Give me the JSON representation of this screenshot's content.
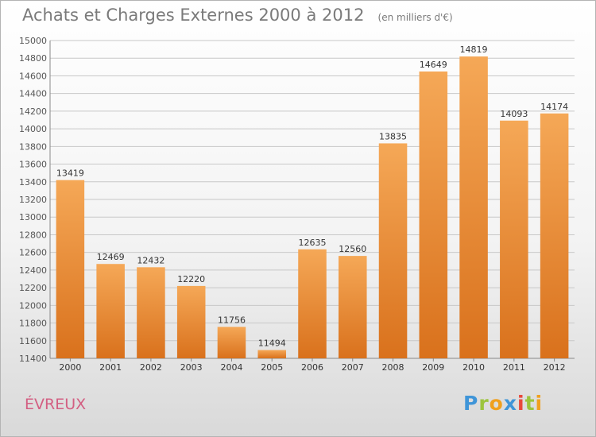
{
  "header": {
    "title": "Achats et Charges Externes 2000 à 2012",
    "unit": "(en milliers d'€)"
  },
  "footer": {
    "city": "ÉVREUX",
    "logo": [
      "P",
      "r",
      "o",
      "x",
      "i",
      "t",
      "i"
    ]
  },
  "colors": {
    "bar_top": "#f5a857",
    "bar_bottom": "#d9711c",
    "grid": "#c8c8c8",
    "text": "#555555"
  },
  "chart_data": {
    "type": "bar",
    "categories": [
      "2000",
      "2001",
      "2002",
      "2003",
      "2004",
      "2005",
      "2006",
      "2007",
      "2008",
      "2009",
      "2010",
      "2011",
      "2012"
    ],
    "values": [
      13419,
      12469,
      12432,
      12220,
      11756,
      11494,
      12635,
      12560,
      13835,
      14649,
      14819,
      14093,
      14174
    ],
    "title": "Achats et Charges Externes 2000 à 2012",
    "ylim": [
      11400,
      15000
    ],
    "yticks": [
      11400,
      11600,
      11800,
      12000,
      12200,
      12400,
      12600,
      12800,
      13000,
      13200,
      13400,
      13600,
      13800,
      14000,
      14200,
      14400,
      14600,
      14800,
      15000
    ],
    "grid": true,
    "data_labels": true
  }
}
